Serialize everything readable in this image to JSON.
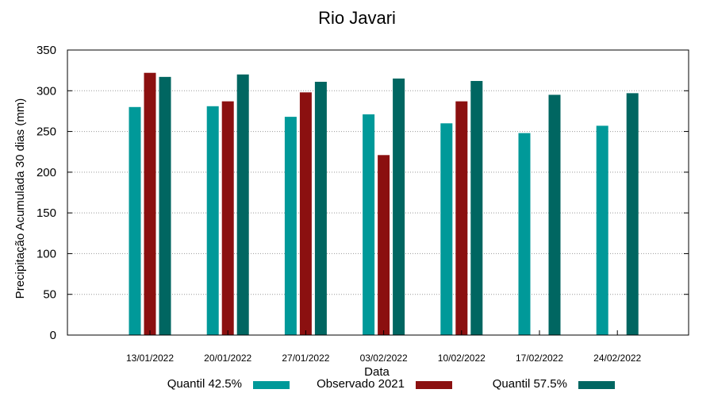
{
  "chart_data": {
    "type": "bar",
    "title": "Rio Javari",
    "xlabel": "Data",
    "ylabel": "Precipitação Acumulada 30 dias (mm)",
    "ylim": [
      0,
      350
    ],
    "yticks": [
      0,
      50,
      100,
      150,
      200,
      250,
      300,
      350
    ],
    "grid": true,
    "categories": [
      "13/01/2022",
      "20/01/2022",
      "27/01/2022",
      "03/02/2022",
      "10/02/2022",
      "17/02/2022",
      "24/02/2022"
    ],
    "series": [
      {
        "name": "Quantil 42.5%",
        "color": "#009999",
        "values": [
          280,
          281,
          268,
          271,
          260,
          248,
          257
        ]
      },
      {
        "name": "Observado 2021",
        "color": "#8b1010",
        "values": [
          322,
          287,
          298,
          221,
          287,
          null,
          null
        ]
      },
      {
        "name": "Quantil 57.5%",
        "color": "#006661",
        "values": [
          317,
          320,
          311,
          315,
          312,
          295,
          297
        ]
      }
    ],
    "legend_position": "bottom"
  }
}
